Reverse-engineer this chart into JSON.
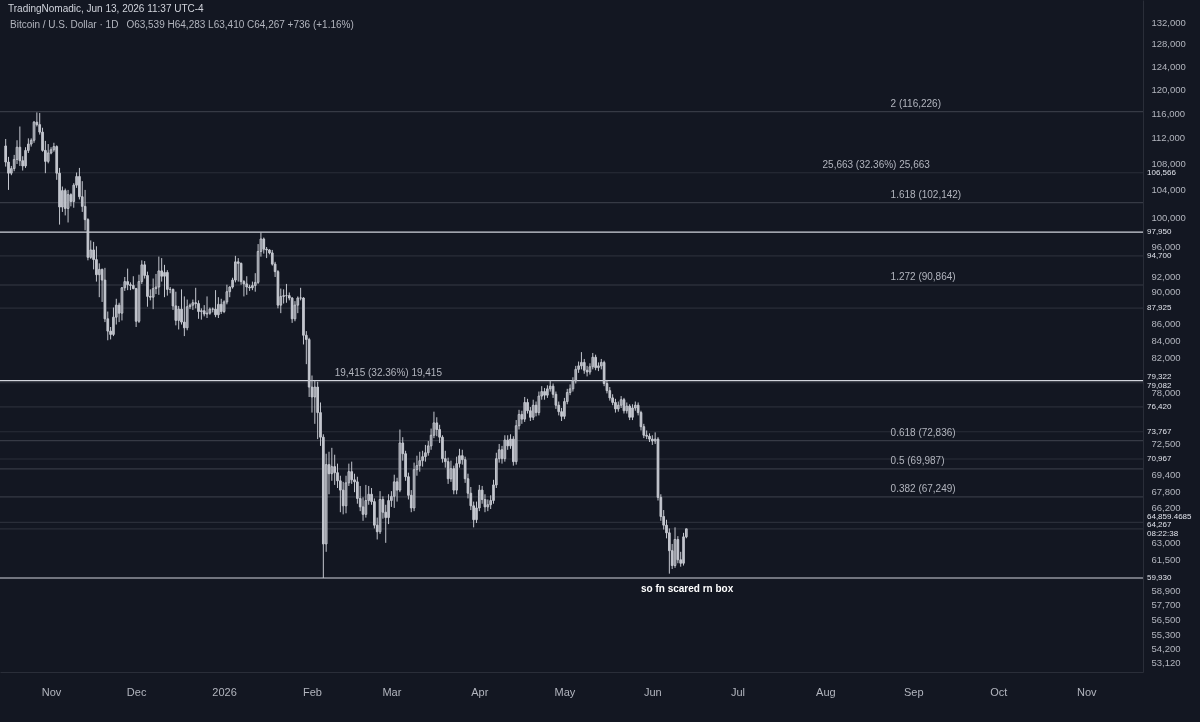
{
  "chart_data": {
    "type": "candlestick",
    "title": "Bitcoin / U.S. Dollar · 1D",
    "subtitle": "O63,539 H64,283 L63,410 C64,267 +736 (+1.16%)",
    "annotations": [
      "TradingNomadic, Jun 13, 2026 11:37 UTC-4",
      {
        "text": "2 (116,226)",
        "x": "2026-08-24",
        "y": 116226
      },
      {
        "text": "1.618 (102,142)",
        "x": "2026-08-24",
        "y": 102142
      },
      {
        "text": "1.272 (90,864)",
        "x": "2026-08-24",
        "y": 90864
      },
      {
        "text": "0.618 (72,836)",
        "x": "2026-08-24",
        "y": 72836
      },
      {
        "text": "0.5 (69,987)",
        "x": "2026-08-24",
        "y": 69987
      },
      {
        "text": "0.382 (67,249)",
        "x": "2026-08-24",
        "y": 67249
      },
      {
        "text": "19,415 (32.36%) 19,415",
        "x": "2026-02-09",
        "y": 79322
      },
      {
        "text": "25,663 (32.36%) 25,663",
        "x": "2026-07-31",
        "y": 106566
      },
      {
        "text": "so fn scared rn box",
        "x": "2026-05-28",
        "y": 59930
      }
    ],
    "ref_lines": [
      {
        "axis": "y",
        "value": 97950,
        "label": "97,950",
        "color": "#d1d4dc"
      },
      {
        "axis": "y",
        "value": 79322,
        "label": "79,322",
        "color": "#d1d4dc"
      },
      {
        "axis": "y",
        "value": 59930,
        "label": "59,930",
        "color": "#d1d4dc"
      },
      {
        "axis": "y",
        "value": 106566,
        "label": "106,566",
        "color": "#2a2e39"
      },
      {
        "axis": "y",
        "value": 94700,
        "label": "94,700",
        "color": "#2a2e39"
      },
      {
        "axis": "y",
        "value": 87925,
        "label": "87,925",
        "color": "#2a2e39"
      },
      {
        "axis": "y",
        "value": 79082,
        "label": "79,082",
        "color": "#2a2e39"
      },
      {
        "axis": "y",
        "value": 76420,
        "label": "76,420",
        "color": "#2a2e39"
      },
      {
        "axis": "y",
        "value": 73767,
        "label": "73,767",
        "color": "#2a2e39"
      },
      {
        "axis": "y",
        "value": 70967,
        "label": "70,967",
        "color": "#2a2e39"
      },
      {
        "axis": "y",
        "value": 64859.4685,
        "label": "64,859.4685",
        "color": "#2a2e39"
      },
      {
        "axis": "y",
        "value": 64267,
        "label": "64,267\n08:22:38",
        "color": "#2a2e39"
      },
      {
        "axis": "y",
        "value": 116226,
        "color": "#363a45"
      },
      {
        "axis": "y",
        "value": 102142,
        "color": "#363a45"
      },
      {
        "axis": "y",
        "value": 90864,
        "color": "#363a45"
      },
      {
        "axis": "y",
        "value": 72836,
        "color": "#363a45"
      },
      {
        "axis": "y",
        "value": 69987,
        "color": "#363a45"
      },
      {
        "axis": "y",
        "value": 67249,
        "color": "#363a45"
      }
    ],
    "log": true,
    "xlim": [
      "2025-10-14",
      "2026-11-21"
    ],
    "xticks": [
      {
        "value": "2025-11-01",
        "label": "Nov"
      },
      {
        "value": "2025-12-01",
        "label": "Dec"
      },
      {
        "value": "2026-01-01",
        "label": "2026"
      },
      {
        "value": "2026-02-01",
        "label": "Feb"
      },
      {
        "value": "2026-03-01",
        "label": "Mar"
      },
      {
        "value": "2026-04-01",
        "label": "Apr"
      },
      {
        "value": "2026-05-01",
        "label": "May"
      },
      {
        "value": "2026-06-01",
        "label": "Jun"
      },
      {
        "value": "2026-07-01",
        "label": "Jul"
      },
      {
        "value": "2026-08-01",
        "label": "Aug"
      },
      {
        "value": "2026-09-01",
        "label": "Sep"
      },
      {
        "value": "2026-10-01",
        "label": "Oct"
      },
      {
        "value": "2026-11-01",
        "label": "Nov"
      }
    ],
    "ylim": [
      52440,
      136200
    ],
    "yticks": [
      {
        "value": 132000,
        "label": "132,000"
      },
      {
        "value": 128000,
        "label": "128,000"
      },
      {
        "value": 124000,
        "label": "124,000"
      },
      {
        "value": 120000,
        "label": "120,000"
      },
      {
        "value": 116000,
        "label": "116,000"
      },
      {
        "value": 112000,
        "label": "112,000"
      },
      {
        "value": 108000,
        "label": "108,000"
      },
      {
        "value": 104000,
        "label": "104,000"
      },
      {
        "value": 100000,
        "label": "100,000"
      },
      {
        "value": 96000,
        "label": "96,000"
      },
      {
        "value": 92000,
        "label": "92,000"
      },
      {
        "value": 90000,
        "label": "90,000"
      },
      {
        "value": 86000,
        "label": "86,000"
      },
      {
        "value": 84000,
        "label": "84,000"
      },
      {
        "value": 82000,
        "label": "82,000"
      },
      {
        "value": 78000,
        "label": "78,000"
      },
      {
        "value": 72500,
        "label": "72,500"
      },
      {
        "value": 69400,
        "label": "69,400"
      },
      {
        "value": 67800,
        "label": "67,800"
      },
      {
        "value": 66200,
        "label": "66,200"
      },
      {
        "value": 63000,
        "label": "63,000"
      },
      {
        "value": 61500,
        "label": "61,500"
      },
      {
        "value": 58900,
        "label": "58,900"
      },
      {
        "value": 57700,
        "label": "57,700"
      },
      {
        "value": 56500,
        "label": "56,500"
      },
      {
        "value": 55300,
        "label": "55,300"
      },
      {
        "value": 54200,
        "label": "54,200"
      },
      {
        "value": 53120,
        "label": "53,120"
      }
    ],
    "x": [
      "2025-10-16",
      "2025-10-17",
      "2025-10-18",
      "2025-10-19",
      "2025-10-20",
      "2025-10-21",
      "2025-10-22",
      "2025-10-23",
      "2025-10-24",
      "2025-10-25",
      "2025-10-26",
      "2025-10-27",
      "2025-10-28",
      "2025-10-29",
      "2025-10-30",
      "2025-10-31",
      "2025-11-01",
      "2025-11-02",
      "2025-11-03",
      "2025-11-04",
      "2025-11-05",
      "2025-11-06",
      "2025-11-07",
      "2025-11-08",
      "2025-11-09",
      "2025-11-10",
      "2025-11-11",
      "2025-11-12",
      "2025-11-13",
      "2025-11-14",
      "2025-11-15",
      "2025-11-16",
      "2025-11-17",
      "2025-11-18",
      "2025-11-19",
      "2025-11-20",
      "2025-11-21",
      "2025-11-22",
      "2025-11-23",
      "2025-11-24",
      "2025-11-25",
      "2025-11-26",
      "2025-11-27",
      "2025-11-28",
      "2025-11-29",
      "2025-11-30",
      "2025-12-01",
      "2025-12-02",
      "2025-12-03",
      "2025-12-04",
      "2025-12-05",
      "2025-12-06",
      "2025-12-07",
      "2025-12-08",
      "2025-12-09",
      "2025-12-10",
      "2025-12-11",
      "2025-12-12",
      "2025-12-13",
      "2025-12-14",
      "2025-12-15",
      "2025-12-16",
      "2025-12-17",
      "2025-12-18",
      "2025-12-19",
      "2025-12-20",
      "2025-12-21",
      "2025-12-22",
      "2025-12-23",
      "2025-12-24",
      "2025-12-25",
      "2025-12-26",
      "2025-12-27",
      "2025-12-28",
      "2025-12-29",
      "2025-12-30",
      "2025-12-31",
      "2026-01-01",
      "2026-01-02",
      "2026-01-03",
      "2026-01-04",
      "2026-01-05",
      "2026-01-06",
      "2026-01-07",
      "2026-01-08",
      "2026-01-09",
      "2026-01-10",
      "2026-01-11",
      "2026-01-12",
      "2026-01-13",
      "2026-01-14",
      "2026-01-15",
      "2026-01-16",
      "2026-01-17",
      "2026-01-18",
      "2026-01-19",
      "2026-01-20",
      "2026-01-21",
      "2026-01-22",
      "2026-01-23",
      "2026-01-24",
      "2026-01-25",
      "2026-01-26",
      "2026-01-27",
      "2026-01-28",
      "2026-01-29",
      "2026-01-30",
      "2026-01-31",
      "2026-02-01",
      "2026-02-02",
      "2026-02-03",
      "2026-02-04",
      "2026-02-05",
      "2026-02-06",
      "2026-02-07",
      "2026-02-08",
      "2026-02-09",
      "2026-02-10",
      "2026-02-11",
      "2026-02-12",
      "2026-02-13",
      "2026-02-14",
      "2026-02-15",
      "2026-02-16",
      "2026-02-17",
      "2026-02-18",
      "2026-02-19",
      "2026-02-20",
      "2026-02-21",
      "2026-02-22",
      "2026-02-23",
      "2026-02-24",
      "2026-02-25",
      "2026-02-26",
      "2026-02-27",
      "2026-02-28",
      "2026-03-01",
      "2026-03-02",
      "2026-03-03",
      "2026-03-04",
      "2026-03-05",
      "2026-03-06",
      "2026-03-07",
      "2026-03-08",
      "2026-03-09",
      "2026-03-10",
      "2026-03-11",
      "2026-03-12",
      "2026-03-13",
      "2026-03-14",
      "2026-03-15",
      "2026-03-16",
      "2026-03-17",
      "2026-03-18",
      "2026-03-19",
      "2026-03-20",
      "2026-03-21",
      "2026-03-22",
      "2026-03-23",
      "2026-03-24",
      "2026-03-25",
      "2026-03-26",
      "2026-03-27",
      "2026-03-28",
      "2026-03-29",
      "2026-03-30",
      "2026-03-31",
      "2026-04-01",
      "2026-04-02",
      "2026-04-03",
      "2026-04-04",
      "2026-04-05",
      "2026-04-06",
      "2026-04-07",
      "2026-04-08",
      "2026-04-09",
      "2026-04-10",
      "2026-04-11",
      "2026-04-12",
      "2026-04-13",
      "2026-04-14",
      "2026-04-15",
      "2026-04-16",
      "2026-04-17",
      "2026-04-18",
      "2026-04-19",
      "2026-04-20",
      "2026-04-21",
      "2026-04-22",
      "2026-04-23",
      "2026-04-24",
      "2026-04-25",
      "2026-04-26",
      "2026-04-27",
      "2026-04-28",
      "2026-04-29",
      "2026-04-30",
      "2026-05-01",
      "2026-05-02",
      "2026-05-03",
      "2026-05-04",
      "2026-05-05",
      "2026-05-06",
      "2026-05-07",
      "2026-05-08",
      "2026-05-09",
      "2026-05-10",
      "2026-05-11",
      "2026-05-12",
      "2026-05-13",
      "2026-05-14",
      "2026-05-15",
      "2026-05-16",
      "2026-05-17",
      "2026-05-18",
      "2026-05-19",
      "2026-05-20",
      "2026-05-21",
      "2026-05-22",
      "2026-05-23",
      "2026-05-24",
      "2026-05-25",
      "2026-05-26",
      "2026-05-27",
      "2026-05-28",
      "2026-05-29",
      "2026-05-30",
      "2026-05-31",
      "2026-06-01",
      "2026-06-02",
      "2026-06-03",
      "2026-06-04",
      "2026-06-05",
      "2026-06-06",
      "2026-06-07",
      "2026-06-08",
      "2026-06-09",
      "2026-06-10",
      "2026-06-11",
      "2026-06-12",
      "2026-06-13"
    ],
    "series": [
      {
        "color": "#c3c6ce",
        "ohlc": [
          [
            110700,
            111800,
            107500,
            108200
          ],
          [
            108200,
            109000,
            104000,
            106500
          ],
          [
            106500,
            107600,
            106200,
            107200
          ],
          [
            107200,
            109300,
            106800,
            108600
          ],
          [
            108600,
            111600,
            107900,
            110500
          ],
          [
            110500,
            113800,
            107600,
            108400
          ],
          [
            108400,
            109100,
            106900,
            107600
          ],
          [
            107600,
            110500,
            107300,
            110000
          ],
          [
            110000,
            111900,
            109600,
            111000
          ],
          [
            111000,
            111900,
            110600,
            111600
          ],
          [
            111600,
            114700,
            111200,
            114500
          ],
          [
            114500,
            116100,
            113800,
            114100
          ],
          [
            114100,
            116000,
            112500,
            112900
          ],
          [
            112900,
            113600,
            109800,
            110000
          ],
          [
            110000,
            111500,
            106500,
            108300
          ],
          [
            108300,
            111000,
            108000,
            109600
          ],
          [
            109600,
            110500,
            109400,
            110100
          ],
          [
            110100,
            111200,
            109800,
            110600
          ],
          [
            110600,
            110800,
            105500,
            106500
          ],
          [
            106500,
            107300,
            99000,
            101500
          ],
          [
            101500,
            104500,
            100800,
            103900
          ],
          [
            103900,
            104200,
            100300,
            101300
          ],
          [
            101300,
            104000,
            99300,
            103300
          ],
          [
            103300,
            103500,
            101600,
            102300
          ],
          [
            102300,
            105000,
            101400,
            104700
          ],
          [
            104700,
            106600,
            104300,
            106000
          ],
          [
            106000,
            107300,
            102600,
            103000
          ],
          [
            103000,
            105300,
            100800,
            101600
          ],
          [
            101600,
            104000,
            98200,
            99700
          ],
          [
            99700,
            99900,
            94100,
            94500
          ],
          [
            94500,
            96800,
            94300,
            95500
          ],
          [
            95500,
            96600,
            92900,
            94200
          ],
          [
            94200,
            96000,
            91300,
            92200
          ],
          [
            92200,
            93700,
            89300,
            92900
          ],
          [
            92900,
            93000,
            88700,
            91500
          ],
          [
            91500,
            93100,
            86200,
            86600
          ],
          [
            86600,
            87500,
            84000,
            85100
          ],
          [
            85100,
            85600,
            84100,
            84700
          ],
          [
            84700,
            88000,
            84500,
            86800
          ],
          [
            86800,
            89100,
            85900,
            88300
          ],
          [
            88300,
            88600,
            86200,
            87300
          ],
          [
            87300,
            90600,
            86400,
            90500
          ],
          [
            90500,
            91900,
            90100,
            91300
          ],
          [
            91300,
            93000,
            90200,
            90900
          ],
          [
            90900,
            91200,
            90200,
            90800
          ],
          [
            90800,
            92000,
            90300,
            90400
          ],
          [
            90400,
            90500,
            85600,
            86300
          ],
          [
            86300,
            92200,
            86100,
            91300
          ],
          [
            91300,
            94100,
            91000,
            93500
          ],
          [
            93500,
            94000,
            91700,
            92100
          ],
          [
            92100,
            92600,
            88100,
            89400
          ],
          [
            89400,
            90300,
            88900,
            89300
          ],
          [
            89300,
            91700,
            87800,
            90400
          ],
          [
            90400,
            92300,
            89700,
            90600
          ],
          [
            90600,
            94600,
            89600,
            92700
          ],
          [
            92700,
            94400,
            91300,
            92000
          ],
          [
            92000,
            93500,
            89300,
            92500
          ],
          [
            92500,
            92800,
            89500,
            90300
          ],
          [
            90300,
            90600,
            89800,
            90300
          ],
          [
            90300,
            90400,
            87700,
            88200
          ],
          [
            88200,
            90000,
            85800,
            86400
          ],
          [
            86400,
            88200,
            85300,
            87800
          ],
          [
            87800,
            90300,
            85900,
            86200
          ],
          [
            86200,
            89400,
            84500,
            85500
          ],
          [
            85500,
            89000,
            85200,
            88100
          ],
          [
            88100,
            88500,
            87800,
            88300
          ],
          [
            88300,
            89000,
            87700,
            88600
          ],
          [
            88600,
            90500,
            87900,
            88500
          ],
          [
            88500,
            88900,
            86600,
            87500
          ],
          [
            87500,
            87900,
            86500,
            87600
          ],
          [
            87600,
            88300,
            86900,
            87200
          ],
          [
            87200,
            89400,
            86700,
            87300
          ],
          [
            87300,
            88000,
            87100,
            87800
          ],
          [
            87800,
            88000,
            87400,
            87800
          ],
          [
            87800,
            90200,
            86800,
            87100
          ],
          [
            87100,
            89300,
            86700,
            88400
          ],
          [
            88400,
            89100,
            87200,
            87500
          ],
          [
            87500,
            88900,
            87300,
            88700
          ],
          [
            88700,
            90900,
            88400,
            90000
          ],
          [
            90000,
            90700,
            89300,
            90600
          ],
          [
            90600,
            91800,
            90400,
            91500
          ],
          [
            91500,
            94700,
            91200,
            93900
          ],
          [
            93900,
            94400,
            91300,
            93700
          ],
          [
            93700,
            93800,
            90900,
            91300
          ],
          [
            91300,
            91500,
            89400,
            91000
          ],
          [
            91000,
            92000,
            89600,
            90600
          ],
          [
            90600,
            90900,
            90100,
            90500
          ],
          [
            90500,
            91300,
            90200,
            90800
          ],
          [
            90800,
            92400,
            90000,
            91200
          ],
          [
            91200,
            96300,
            91000,
            95300
          ],
          [
            95300,
            97900,
            94600,
            97000
          ],
          [
            97000,
            97200,
            95000,
            95600
          ],
          [
            95600,
            95900,
            94400,
            95500
          ],
          [
            95500,
            95600,
            94900,
            95100
          ],
          [
            95100,
            95500,
            93400,
            93600
          ],
          [
            93600,
            93900,
            91900,
            92600
          ],
          [
            92600,
            92800,
            87900,
            88300
          ],
          [
            88300,
            90400,
            87300,
            89400
          ],
          [
            89400,
            90300,
            88500,
            89500
          ],
          [
            89500,
            91000,
            88600,
            89500
          ],
          [
            89500,
            89900,
            88900,
            89200
          ],
          [
            89200,
            89300,
            86100,
            86600
          ],
          [
            86600,
            88800,
            86300,
            88300
          ],
          [
            88300,
            89400,
            87300,
            89200
          ],
          [
            89200,
            90500,
            88900,
            89200
          ],
          [
            89200,
            89300,
            83500,
            84600
          ],
          [
            84600,
            85100,
            81200,
            84100
          ],
          [
            84100,
            84300,
            77500,
            78600
          ],
          [
            78600,
            79900,
            75800,
            77500
          ],
          [
            77500,
            79300,
            74600,
            78600
          ],
          [
            78600,
            79200,
            73000,
            75800
          ],
          [
            75800,
            76900,
            72300,
            73200
          ],
          [
            73200,
            73500,
            59930,
            62900
          ],
          [
            62900,
            71500,
            62200,
            70400
          ],
          [
            70400,
            71700,
            67500,
            69500
          ],
          [
            69500,
            72100,
            68800,
            70200
          ],
          [
            70200,
            71400,
            68400,
            69600
          ],
          [
            69600,
            70500,
            68100,
            68800
          ],
          [
            68800,
            69300,
            65800,
            67900
          ],
          [
            67900,
            68700,
            65600,
            66400
          ],
          [
            66400,
            69300,
            65700,
            68600
          ],
          [
            68600,
            70500,
            68300,
            69700
          ],
          [
            69700,
            70700,
            68500,
            68900
          ],
          [
            68900,
            69500,
            67700,
            68700
          ],
          [
            68700,
            69200,
            66600,
            67100
          ],
          [
            67100,
            68300,
            65900,
            66300
          ],
          [
            66300,
            67200,
            65000,
            65600
          ],
          [
            65600,
            68400,
            65300,
            66900
          ],
          [
            66900,
            68300,
            66500,
            67500
          ],
          [
            67500,
            68100,
            66500,
            66800
          ],
          [
            66800,
            67100,
            64300,
            64600
          ],
          [
            64600,
            65300,
            63300,
            64000
          ],
          [
            64000,
            67800,
            63800,
            67000
          ],
          [
            67000,
            67300,
            65200,
            65800
          ],
          [
            65800,
            66500,
            63000,
            65300
          ],
          [
            65300,
            67500,
            64700,
            66900
          ],
          [
            66900,
            67800,
            66300,
            67300
          ],
          [
            67300,
            69400,
            66200,
            68700
          ],
          [
            68700,
            69100,
            66800,
            67900
          ],
          [
            67900,
            74000,
            67700,
            72600
          ],
          [
            72600,
            73200,
            70800,
            71500
          ],
          [
            71500,
            71800,
            68800,
            69200
          ],
          [
            69200,
            69600,
            67000,
            67400
          ],
          [
            67400,
            67900,
            65800,
            66200
          ],
          [
            66200,
            70600,
            65900,
            69900
          ],
          [
            69900,
            71300,
            69300,
            70300
          ],
          [
            70300,
            71700,
            69700,
            70800
          ],
          [
            70800,
            71800,
            70200,
            71200
          ],
          [
            71200,
            72400,
            70700,
            71600
          ],
          [
            71600,
            72800,
            71300,
            72300
          ],
          [
            72300,
            74100,
            71900,
            73400
          ],
          [
            73400,
            75900,
            73100,
            74700
          ],
          [
            74700,
            75300,
            73300,
            74000
          ],
          [
            74000,
            74500,
            72600,
            73200
          ],
          [
            73200,
            73400,
            70600,
            71000
          ],
          [
            71000,
            71800,
            70100,
            70700
          ],
          [
            70700,
            71100,
            68500,
            69000
          ],
          [
            69000,
            70800,
            68700,
            70000
          ],
          [
            70000,
            70300,
            67500,
            67900
          ],
          [
            67900,
            71200,
            67500,
            70500
          ],
          [
            70500,
            72000,
            70100,
            71300
          ],
          [
            71300,
            71900,
            70400,
            70900
          ],
          [
            70900,
            71200,
            68600,
            69000
          ],
          [
            69000,
            69500,
            67100,
            67600
          ],
          [
            67600,
            68200,
            66000,
            66400
          ],
          [
            66400,
            66800,
            64400,
            65100
          ],
          [
            65100,
            66800,
            64800,
            66200
          ],
          [
            66200,
            68400,
            65900,
            67900
          ],
          [
            67900,
            68300,
            66600,
            67000
          ],
          [
            67000,
            67500,
            65800,
            66300
          ],
          [
            66300,
            67000,
            65900,
            66500
          ],
          [
            66500,
            67400,
            66100,
            66900
          ],
          [
            66900,
            68900,
            66600,
            68400
          ],
          [
            68400,
            71600,
            68100,
            71000
          ],
          [
            71000,
            72500,
            70600,
            71900
          ],
          [
            71900,
            72300,
            70500,
            71000
          ],
          [
            71000,
            73400,
            70700,
            72900
          ],
          [
            72900,
            73400,
            71900,
            72300
          ],
          [
            72300,
            73500,
            72000,
            73000
          ],
          [
            73000,
            73300,
            70300,
            70700
          ],
          [
            70700,
            75000,
            70400,
            74400
          ],
          [
            74400,
            76100,
            74000,
            75600
          ],
          [
            75600,
            76000,
            74600,
            75100
          ],
          [
            75100,
            77500,
            74800,
            76900
          ],
          [
            76900,
            77300,
            75700,
            76000
          ],
          [
            76000,
            76400,
            74900,
            75300
          ],
          [
            75300,
            77200,
            75000,
            76600
          ],
          [
            76600,
            77000,
            75400,
            75800
          ],
          [
            75800,
            78100,
            75500,
            77600
          ],
          [
            77600,
            78700,
            77200,
            78100
          ],
          [
            78100,
            78500,
            77200,
            77700
          ],
          [
            77700,
            78800,
            77400,
            78400
          ],
          [
            78400,
            79300,
            78100,
            78700
          ],
          [
            78700,
            79000,
            77400,
            77800
          ],
          [
            77800,
            78100,
            76200,
            76600
          ],
          [
            76600,
            77000,
            75500,
            75900
          ],
          [
            75900,
            76300,
            74900,
            75400
          ],
          [
            75400,
            77400,
            75100,
            77000
          ],
          [
            77000,
            78400,
            76700,
            78000
          ],
          [
            78000,
            78900,
            77700,
            78400
          ],
          [
            78400,
            79700,
            78100,
            79300
          ],
          [
            79300,
            81000,
            79000,
            80600
          ],
          [
            80600,
            81500,
            80200,
            81000
          ],
          [
            81000,
            82600,
            80600,
            81400
          ],
          [
            81400,
            81800,
            80100,
            80500
          ],
          [
            80500,
            81000,
            79800,
            80300
          ],
          [
            80300,
            81300,
            80000,
            80900
          ],
          [
            80900,
            82500,
            80600,
            82000
          ],
          [
            82000,
            82300,
            80500,
            80800
          ],
          [
            80800,
            81400,
            80400,
            81000
          ],
          [
            81000,
            81800,
            80600,
            81400
          ],
          [
            81400,
            81600,
            78700,
            79000
          ],
          [
            79000,
            79400,
            77900,
            78200
          ],
          [
            78200,
            78600,
            77100,
            77400
          ],
          [
            77400,
            77800,
            76600,
            76900
          ],
          [
            76900,
            77300,
            75800,
            76200
          ],
          [
            76200,
            77000,
            75900,
            76600
          ],
          [
            76600,
            77600,
            76300,
            77200
          ],
          [
            77200,
            77400,
            75700,
            76000
          ],
          [
            76000,
            76900,
            75700,
            76500
          ],
          [
            76500,
            76700,
            75000,
            75300
          ],
          [
            75300,
            76700,
            75000,
            76300
          ],
          [
            76300,
            77000,
            76000,
            76600
          ],
          [
            76600,
            76900,
            75500,
            75800
          ],
          [
            75800,
            76000,
            73900,
            74300
          ],
          [
            74300,
            74600,
            73100,
            73400
          ],
          [
            73400,
            73900,
            73000,
            73300
          ],
          [
            73300,
            73600,
            72700,
            73000
          ],
          [
            73000,
            73400,
            72400,
            72800
          ],
          [
            72800,
            73700,
            72500,
            73000
          ],
          [
            73000,
            73200,
            66900,
            67200
          ],
          [
            67200,
            67500,
            65000,
            65400
          ],
          [
            65400,
            66000,
            64200,
            64600
          ],
          [
            64600,
            65100,
            63400,
            63900
          ],
          [
            63900,
            64300,
            60300,
            62300
          ],
          [
            62300,
            62900,
            60700,
            61000
          ],
          [
            61000,
            64400,
            60800,
            63300
          ],
          [
            63300,
            63600,
            61200,
            61500
          ],
          [
            61500,
            62200,
            60900,
            61200
          ],
          [
            61200,
            63900,
            61000,
            63539
          ],
          [
            63539,
            64283,
            63410,
            64267
          ]
        ]
      }
    ]
  }
}
